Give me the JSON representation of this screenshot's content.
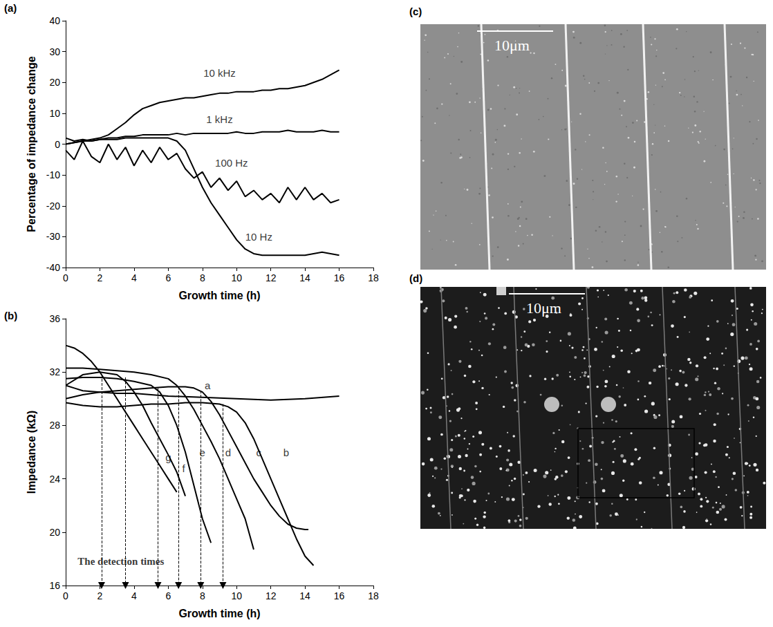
{
  "chart_data": [
    {
      "type": "line",
      "title": "(a)",
      "xlabel": "Growth time (h)",
      "ylabel": "Percentage of impedance change",
      "xlim": [
        0,
        18
      ],
      "xticks": [
        0,
        2,
        4,
        6,
        8,
        10,
        12,
        14,
        16,
        18
      ],
      "ylim": [
        -40,
        40
      ],
      "yticks": [
        -40,
        -30,
        -20,
        -10,
        0,
        10,
        20,
        30,
        40
      ],
      "grid": false,
      "x": [
        0,
        0.5,
        1,
        1.5,
        2,
        2.5,
        3,
        3.5,
        4,
        4.5,
        5,
        5.5,
        6,
        6.5,
        7,
        7.5,
        8,
        8.5,
        9,
        9.5,
        10,
        10.5,
        11,
        11.5,
        12,
        12.5,
        13,
        13.5,
        14,
        14.5,
        15,
        15.5,
        16
      ],
      "series": [
        {
          "name": "10 kHz",
          "color": "#000000",
          "label_x": 9,
          "label_y": 23,
          "values": [
            0,
            0.5,
            1,
            1.5,
            2,
            3,
            5,
            7,
            9.5,
            11.5,
            12.5,
            13.5,
            14,
            14.5,
            15,
            15,
            15.5,
            16,
            16.5,
            16.5,
            17,
            17,
            17,
            17.5,
            17.5,
            18,
            18,
            18.5,
            19,
            20,
            21,
            22.5,
            24
          ]
        },
        {
          "name": "1 kHz",
          "color": "#000000",
          "label_x": 9,
          "label_y": 8,
          "values": [
            2,
            1,
            1.5,
            1,
            1.5,
            2,
            2,
            2.5,
            2.5,
            3,
            3,
            3,
            3,
            3.5,
            3,
            3.5,
            3.5,
            3.5,
            3.5,
            3.5,
            4,
            3.5,
            3.5,
            4,
            4,
            4,
            4.5,
            4,
            4,
            4,
            4.5,
            4,
            4
          ]
        },
        {
          "name": "100 Hz",
          "color": "#000000",
          "label_x": 9.7,
          "label_y": -6,
          "values": [
            -2,
            -5,
            1,
            -4,
            -6,
            0,
            -5,
            -1,
            -7,
            -2,
            -6,
            -1,
            -5,
            -3,
            -8,
            -11,
            -9,
            -14,
            -11,
            -15,
            -12,
            -17,
            -15,
            -18,
            -16,
            -19,
            -14,
            -18,
            -14,
            -18,
            -16,
            -19,
            -18
          ]
        },
        {
          "name": "10 Hz",
          "color": "#000000",
          "label_x": 11.3,
          "label_y": -30,
          "values": [
            0,
            0.5,
            1,
            1,
            1.5,
            1.5,
            1.5,
            2,
            2,
            2,
            2,
            2,
            2,
            1,
            -2,
            -8,
            -14,
            -19,
            -23,
            -27,
            -31,
            -34,
            -35.5,
            -36,
            -36,
            -36,
            -36,
            -36,
            -36,
            -35.5,
            -35,
            -35.5,
            -36
          ]
        }
      ]
    },
    {
      "type": "line",
      "title": "(b)",
      "xlabel": "Growth time (h)",
      "ylabel": "Impedance (kΩ)",
      "xlim": [
        0,
        18
      ],
      "xticks": [
        0,
        2,
        4,
        6,
        8,
        10,
        12,
        14,
        16,
        18
      ],
      "ylim": [
        16,
        36
      ],
      "yticks": [
        16,
        20,
        24,
        28,
        32,
        36
      ],
      "grid": false,
      "series": [
        {
          "name": "a",
          "color": "#000000",
          "label_x": 8.3,
          "label_y": 31,
          "x": [
            0,
            0.5,
            1,
            2,
            3,
            4,
            6,
            8,
            10,
            12,
            14,
            16
          ],
          "values": [
            31,
            30.8,
            30.6,
            30.5,
            30.4,
            30.4,
            30.2,
            30.1,
            30,
            29.9,
            30,
            30.2
          ]
        },
        {
          "name": "b",
          "color": "#000000",
          "label_x": 12.9,
          "label_y": 26,
          "x": [
            0,
            1,
            2,
            3,
            4,
            5,
            6,
            7,
            8,
            9,
            9.5,
            10,
            10.5,
            11,
            11.5,
            12,
            12.5,
            13,
            13.5,
            14,
            14.5
          ],
          "values": [
            29.7,
            29.5,
            29.4,
            29.4,
            29.5,
            29.6,
            29.6,
            29.7,
            29.7,
            29.6,
            29.4,
            29,
            28.2,
            27,
            25.5,
            24,
            22.5,
            21,
            19.5,
            18.2,
            17.5
          ]
        },
        {
          "name": "c",
          "color": "#000000",
          "label_x": 11.3,
          "label_y": 26,
          "x": [
            0,
            1,
            2,
            3,
            4,
            5,
            6,
            7,
            7.5,
            8,
            8.5,
            9,
            9.5,
            10,
            10.5,
            11,
            11.5,
            12,
            12.5,
            13,
            13.5,
            14,
            14.2
          ],
          "values": [
            30,
            30.3,
            30.5,
            30.6,
            30.7,
            30.8,
            30.9,
            30.9,
            30.8,
            30.5,
            29.8,
            28.8,
            27.6,
            26.4,
            25.2,
            24,
            23,
            22,
            21.2,
            20.6,
            20.3,
            20.2,
            20.2
          ]
        },
        {
          "name": "d",
          "color": "#000000",
          "label_x": 9.5,
          "label_y": 26,
          "x": [
            0,
            1,
            2,
            3,
            4,
            5,
            6,
            6.5,
            7,
            7.5,
            8,
            8.5,
            9,
            9.5,
            10,
            10.5,
            11
          ],
          "values": [
            32.3,
            32.3,
            32.2,
            32.1,
            32,
            31.8,
            31.5,
            31,
            30.2,
            29.2,
            28,
            26.8,
            25.5,
            24,
            22.5,
            21,
            18.7
          ]
        },
        {
          "name": "e",
          "color": "#000000",
          "label_x": 8,
          "label_y": 26,
          "x": [
            0,
            1,
            2,
            3,
            4,
            5,
            5.5,
            6,
            6.5,
            7,
            7.5,
            8,
            8.5
          ],
          "values": [
            31.5,
            31.6,
            31.6,
            31.5,
            31.3,
            31,
            30.5,
            29.5,
            28,
            26,
            23.5,
            21,
            19.2
          ]
        },
        {
          "name": "f",
          "color": "#000000",
          "label_x": 6.9,
          "label_y": 24.8,
          "x": [
            0,
            1,
            2,
            3,
            3.5,
            4,
            4.5,
            5,
            5.5,
            6,
            6.5,
            7
          ],
          "values": [
            31,
            31.8,
            32,
            31.8,
            31.3,
            30.5,
            29.5,
            28.2,
            27,
            25.8,
            24.5,
            22.7
          ]
        },
        {
          "name": "g",
          "color": "#000000",
          "label_x": 6,
          "label_y": 25.6,
          "x": [
            0,
            0.5,
            1,
            1.5,
            2,
            2.5,
            3,
            3.5,
            4,
            4.5,
            5,
            5.5,
            6,
            6.5
          ],
          "values": [
            34,
            33.8,
            33.4,
            32.8,
            32,
            31,
            30,
            29,
            28,
            27,
            26,
            25,
            24,
            23
          ]
        }
      ],
      "detection_times": [
        {
          "x": 2.1,
          "y": 31.8
        },
        {
          "x": 3.5,
          "y": 31.6
        },
        {
          "x": 5.4,
          "y": 30.8
        },
        {
          "x": 6.6,
          "y": 30.9
        },
        {
          "x": 7.9,
          "y": 30.6
        },
        {
          "x": 9.2,
          "y": 29.6
        }
      ],
      "detection_label": {
        "text": "The detection times",
        "x": 0.7,
        "y": 17.8
      }
    }
  ],
  "images": [
    {
      "title": "(c)",
      "scale_bar": "10μm"
    },
    {
      "title": "(d)",
      "scale_bar": "10μm"
    }
  ]
}
